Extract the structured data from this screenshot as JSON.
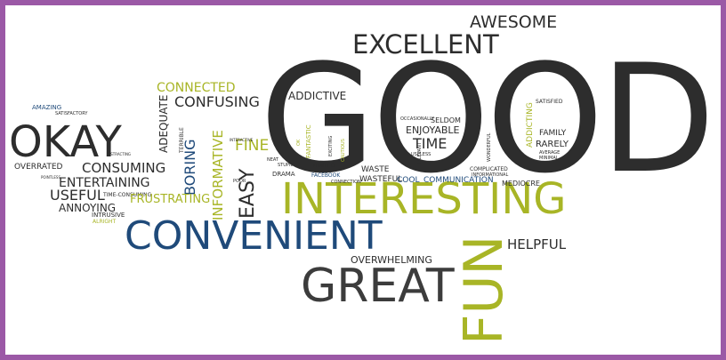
{
  "colors": {
    "frame": "#9b59a6",
    "dark": "#2d2d2d",
    "navy": "#1f4a7a",
    "yellow_green": "#a8b526"
  },
  "words": {
    "good": "GOOD",
    "excellent": "EXCELLENT",
    "awesome": "AWESOME",
    "okay": "OKAY",
    "interesting": "INTERESTING",
    "convenient": "CONVENIENT",
    "great": "GREAT",
    "fun": "FUN",
    "helpful": "HELPFUL",
    "connected": "CONNECTED",
    "confusing": "CONFUSING",
    "addictive": "ADDICTIVE",
    "adequate": "ADEQUATE",
    "informative": "INFORMATIVE",
    "boring": "BORING",
    "easy": "EASY",
    "fine": "FINE",
    "consuming": "CONSUMING",
    "entertaining": "ENTERTAINING",
    "useful": "USEFUL",
    "annoying": "ANNOYING",
    "frustrating": "FRUSTRATING",
    "intrusive": "INTRUSIVE",
    "alright": "ALRIGHT",
    "overrated": "OVERRATED",
    "time_consuming": "TIME-CONSUMING",
    "amazing": "AMAZING",
    "satisfactory": "SATISFACTORY",
    "overwhelming": "OVERWHELMING",
    "mediocre": "MEDIOCRE",
    "communication": "COMMUNICATION",
    "cool": "COOL",
    "waste": "WASTE",
    "wasteful": "WASTEFUL",
    "complicated": "COMPLICATED",
    "time": "TIME",
    "enjoyable": "ENJOYABLE",
    "seldom": "SELDOM",
    "occasionally": "OCCASIONALLY",
    "rarely": "RARELY",
    "family": "FAMILY",
    "addicting": "ADDICTING",
    "satisfied": "SATISFIED",
    "fantastic": "FANTASTIC",
    "limited": "LIMITED",
    "drama": "DRAMA",
    "facebook": "FACEBOOK",
    "stupid": "STUPID",
    "terrible": "TERRIBLE",
    "exciting": "EXCITING",
    "wonderful": "WONDERFUL",
    "informational": "INFORMATIONAL",
    "cautious": "CAUTIOUS",
    "connection": "CONNECTION",
    "neat": "NEAT",
    "poor": "POOR",
    "minimal": "MINIMAL",
    "average": "AVERAGE",
    "useless": "USELESS",
    "interactive": "INTERACTIVE",
    "pointless": "POINTLESS",
    "ok": "OK",
    "relevant": "RELEVANT",
    "distracting": "DISTRACTING"
  }
}
